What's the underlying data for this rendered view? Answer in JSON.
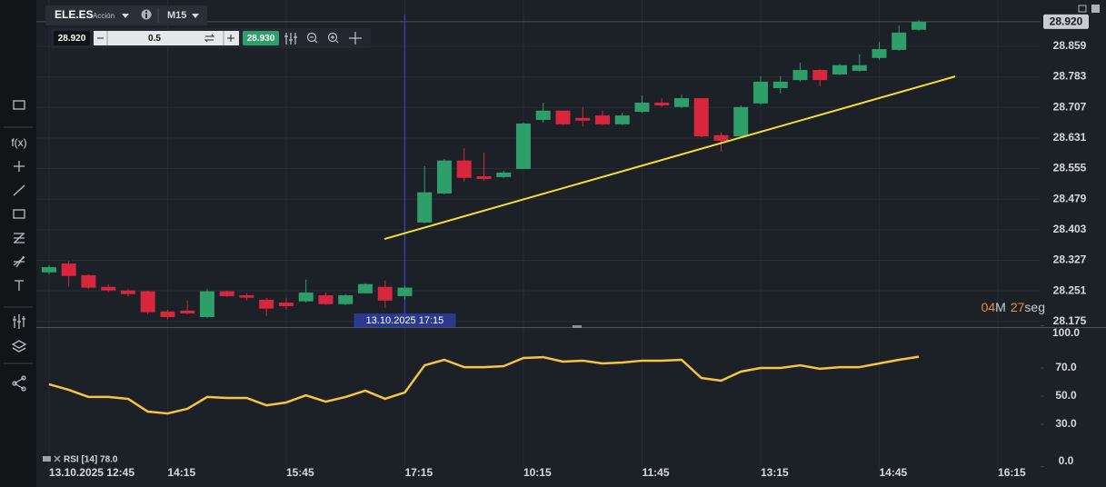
{
  "toolbar": {
    "symbol": "ELE.ES",
    "instrument_type": "Acción",
    "timeframe": "M15",
    "bid": "28.920",
    "quantity": "0.5",
    "ask": "28.930"
  },
  "sidebar": {
    "function_icon": "f(x)"
  },
  "chart_data": [
    {
      "type": "candlestick",
      "xlim": [
        -0.64,
        50.16
      ],
      "xticks": [
        {
          "value": 0,
          "label": "13.10.2025 12:45"
        },
        {
          "value": 6,
          "label": "14:15"
        },
        {
          "value": 12,
          "label": "15:45"
        },
        {
          "value": 18,
          "label": "17:15"
        },
        {
          "value": 24,
          "label": "10:15"
        },
        {
          "value": 30,
          "label": "11:45"
        },
        {
          "value": 36,
          "label": "13:15"
        },
        {
          "value": 42,
          "label": "14:45"
        },
        {
          "value": 48,
          "label": "16:15"
        }
      ],
      "ylim": [
        28.161,
        28.974
      ],
      "yticks": [
        28.175,
        28.251,
        28.327,
        28.403,
        28.479,
        28.555,
        28.631,
        28.707,
        28.783,
        28.859
      ],
      "grid": true,
      "up_color": "#2e9e6b",
      "down_color": "#d9263f",
      "open": [
        28.297,
        28.319,
        28.29,
        28.261,
        28.252,
        28.25,
        28.2,
        28.202,
        28.186,
        28.25,
        28.24,
        28.229,
        28.222,
        28.225,
        28.24,
        28.218,
        28.245,
        28.261,
        28.238,
        28.421,
        28.493,
        28.575,
        28.536,
        28.534,
        28.554,
        28.676,
        28.699,
        28.681,
        28.687,
        28.665,
        28.696,
        28.719,
        28.708,
        28.73,
        28.638,
        28.635,
        28.717,
        28.755,
        28.775,
        28.8,
        28.789,
        28.798,
        28.83,
        28.85,
        28.9
      ],
      "high": [
        28.315,
        28.326,
        28.292,
        28.268,
        28.256,
        28.252,
        28.204,
        28.227,
        28.256,
        28.252,
        28.245,
        28.234,
        28.234,
        28.279,
        28.247,
        28.243,
        28.27,
        28.277,
        28.263,
        28.561,
        28.579,
        28.606,
        28.595,
        28.55,
        28.669,
        28.719,
        28.699,
        28.708,
        28.699,
        28.694,
        28.737,
        28.73,
        28.739,
        28.73,
        28.645,
        28.712,
        28.784,
        28.784,
        28.818,
        28.802,
        28.816,
        28.839,
        28.87,
        28.911,
        28.924
      ],
      "low": [
        28.292,
        28.261,
        28.256,
        28.247,
        28.238,
        28.193,
        28.18,
        28.193,
        28.184,
        28.236,
        28.227,
        28.189,
        28.204,
        28.222,
        28.216,
        28.216,
        28.245,
        28.209,
        28.229,
        28.419,
        28.491,
        28.523,
        28.525,
        28.532,
        28.554,
        28.669,
        28.663,
        28.66,
        28.663,
        28.663,
        28.694,
        28.708,
        28.705,
        28.633,
        28.597,
        28.633,
        28.714,
        28.742,
        28.771,
        28.76,
        28.787,
        28.796,
        28.825,
        28.848,
        28.897
      ],
      "close": [
        28.31,
        28.288,
        28.259,
        28.252,
        28.243,
        28.198,
        28.186,
        28.195,
        28.25,
        28.238,
        28.234,
        28.207,
        28.213,
        28.247,
        28.218,
        28.24,
        28.268,
        28.227,
        28.259,
        28.496,
        28.575,
        28.532,
        28.529,
        28.545,
        28.667,
        28.699,
        28.665,
        28.674,
        28.665,
        28.687,
        28.719,
        28.712,
        28.73,
        28.635,
        28.624,
        28.708,
        28.771,
        28.771,
        28.8,
        28.775,
        28.812,
        28.812,
        28.852,
        28.893,
        28.92
      ],
      "last_price": {
        "value": 28.92,
        "label": "28.920"
      },
      "trendline": {
        "x": [
          16.97,
          45.84
        ],
        "y": [
          28.38,
          28.784
        ],
        "color": "#f3dc3c"
      },
      "crosshair": {
        "x": 18,
        "label": "13.10.2025 17:15"
      },
      "countdown": {
        "minutes": "04",
        "minutes_unit": "M",
        "seconds": "27",
        "seconds_unit": "seg"
      }
    },
    {
      "type": "line",
      "title": "RSI [14] 78.0",
      "color": "#f5c542",
      "ylim": [
        0,
        100
      ],
      "yticks": [
        {
          "value": 100,
          "label": "100.0"
        },
        {
          "value": 70,
          "label": "70.0"
        },
        {
          "value": 50,
          "label": "50.0"
        },
        {
          "value": 30,
          "label": "30.0"
        },
        {
          "value": 0,
          "label": "0.0"
        }
      ],
      "values": [
        58.4,
        54.5,
        49.4,
        49.4,
        48.1,
        39.0,
        37.7,
        41.0,
        49.4,
        48.7,
        48.7,
        43.5,
        45.5,
        50.6,
        46.1,
        49.4,
        53.9,
        48.1,
        52.6,
        71.9,
        75.8,
        70.6,
        70.6,
        71.3,
        77.1,
        77.7,
        74.5,
        75.2,
        73.2,
        73.9,
        75.2,
        75.2,
        75.8,
        62.9,
        61.0,
        67.4,
        70.0,
        70.0,
        71.9,
        69.4,
        70.6,
        70.6,
        73.2,
        75.8,
        78.0
      ]
    }
  ]
}
